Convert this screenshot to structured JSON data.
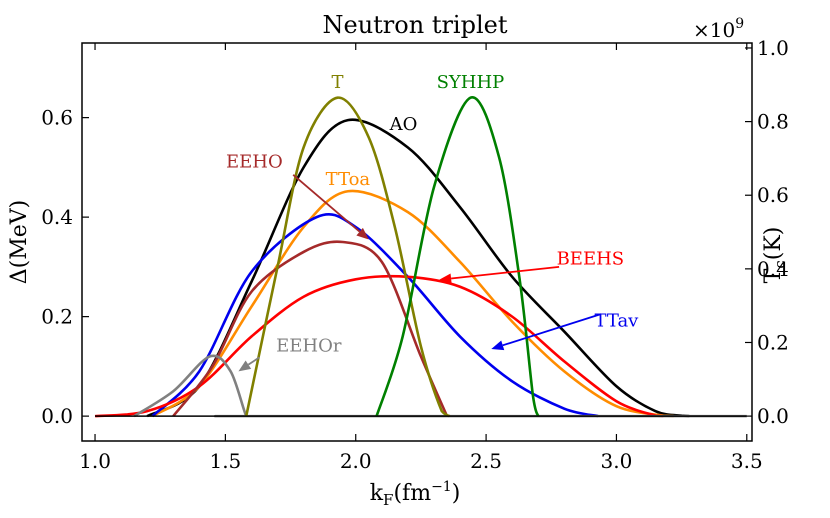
{
  "chart_data": {
    "type": "line",
    "title": "Neutron triplet",
    "xlabel": "k_F(fm^-1)",
    "xlabel_main": "k",
    "xlabel_sub": "F",
    "xlabel_paren": "(fm",
    "xlabel_sup": "−1",
    "xlabel_close": ")",
    "ylabel": "Δ(MeV)",
    "y2label": "T_c(K)",
    "y2label_main": "T",
    "y2label_sub": "c",
    "y2label_rest": "(K)",
    "y2_multiplier": "×10",
    "y2_multiplier_exp": "9",
    "xlim": [
      0.95,
      3.52
    ],
    "ylim": [
      -0.05,
      0.75
    ],
    "y2lim": [
      -0.0676,
      1.0135
    ],
    "xticks": [
      "1.0",
      "1.5",
      "2.0",
      "2.5",
      "3.0",
      "3.5"
    ],
    "yticks": [
      "0.0",
      "0.2",
      "0.4",
      "0.6"
    ],
    "y2ticks": [
      "0.0",
      "0.2",
      "0.4",
      "0.6",
      "0.8",
      "1.0"
    ],
    "series": [
      {
        "name": "AO",
        "color": "#000000",
        "x": [
          1.2,
          1.4,
          1.6,
          1.8,
          1.97,
          2.2,
          2.4,
          2.6,
          2.8,
          3.0,
          3.15,
          3.25,
          3.28
        ],
        "y": [
          0.0,
          0.06,
          0.27,
          0.5,
          0.595,
          0.54,
          0.42,
          0.28,
          0.17,
          0.06,
          0.01,
          0.001,
          0.0
        ]
      },
      {
        "name": "TToa",
        "color": "#ff8c00",
        "x": [
          1.22,
          1.4,
          1.6,
          1.8,
          1.97,
          2.2,
          2.4,
          2.6,
          2.8,
          3.0,
          3.18,
          3.22
        ],
        "y": [
          0.0,
          0.06,
          0.22,
          0.38,
          0.452,
          0.41,
          0.31,
          0.19,
          0.09,
          0.02,
          0.001,
          0.0
        ]
      },
      {
        "name": "TTav",
        "color": "#0000ee",
        "x": [
          1.22,
          1.4,
          1.6,
          1.85,
          2.0,
          2.2,
          2.4,
          2.6,
          2.8,
          2.93
        ],
        "y": [
          0.0,
          0.09,
          0.29,
          0.4,
          0.38,
          0.28,
          0.16,
          0.07,
          0.015,
          0.0
        ]
      },
      {
        "name": "BEEHS",
        "color": "#ff0000",
        "x": [
          1.0,
          1.2,
          1.4,
          1.6,
          1.8,
          2.0,
          2.2,
          2.4,
          2.6,
          2.8,
          3.0,
          3.15,
          3.18
        ],
        "y": [
          0.0,
          0.01,
          0.06,
          0.16,
          0.24,
          0.275,
          0.28,
          0.26,
          0.2,
          0.11,
          0.03,
          0.001,
          0.0
        ]
      },
      {
        "name": "EEHO",
        "color": "#a52a2a",
        "x": [
          1.3,
          1.45,
          1.6,
          1.8,
          1.95,
          2.1,
          2.25,
          2.35
        ],
        "y": [
          0.0,
          0.1,
          0.25,
          0.33,
          0.35,
          0.31,
          0.12,
          0.0
        ]
      },
      {
        "name": "EEHOr",
        "color": "#808080",
        "x": [
          1.15,
          1.3,
          1.44,
          1.52,
          1.58,
          1.6,
          3.5
        ],
        "y": [
          0.0,
          0.05,
          0.12,
          0.09,
          0.0,
          0.0,
          0.0
        ]
      },
      {
        "name": "T",
        "color": "#808000",
        "x": [
          1.58,
          1.7,
          1.8,
          1.93,
          2.05,
          2.15,
          2.25,
          2.33,
          2.36
        ],
        "y": [
          0.0,
          0.3,
          0.54,
          0.64,
          0.56,
          0.38,
          0.14,
          0.01,
          0.0
        ]
      },
      {
        "name": "SYHHP",
        "color": "#008000",
        "x": [
          2.08,
          2.18,
          2.3,
          2.44,
          2.55,
          2.63,
          2.68,
          2.7
        ],
        "y": [
          0.0,
          0.16,
          0.46,
          0.64,
          0.52,
          0.27,
          0.04,
          0.0
        ]
      },
      {
        "name": "baseline",
        "color": "#000000",
        "x": [
          1.0,
          3.5
        ],
        "y": [
          0.0,
          0.0
        ]
      }
    ],
    "annotations": [
      {
        "text": "T",
        "color": "#808000",
        "x": 1.93,
        "y": 0.66,
        "anchor": "middle"
      },
      {
        "text": "SYHHP",
        "color": "#008000",
        "x": 2.44,
        "y": 0.66,
        "anchor": "middle"
      },
      {
        "text": "AO",
        "color": "#000000",
        "x": 2.13,
        "y": 0.575,
        "anchor": "start"
      },
      {
        "text": "TToa",
        "color": "#ff8c00",
        "x": 1.97,
        "y": 0.465,
        "anchor": "middle"
      },
      {
        "text": "EEHO",
        "color": "#a52a2a",
        "x": 1.72,
        "y": 0.5,
        "anchor": "end"
      },
      {
        "text": "BEEHS",
        "color": "#ff0000",
        "x": 2.9,
        "y": 0.305,
        "anchor": "middle"
      },
      {
        "text": "TTav",
        "color": "#0000ee",
        "x": 3.0,
        "y": 0.18,
        "anchor": "middle"
      },
      {
        "text": "EEHOr",
        "color": "#808080",
        "x": 1.82,
        "y": 0.13,
        "anchor": "middle"
      }
    ],
    "arrows": [
      {
        "name": "eeho-arrow",
        "color": "#a52a2a",
        "from": [
          1.76,
          0.485
        ],
        "to": [
          2.05,
          0.355
        ]
      },
      {
        "name": "beehs-arrow",
        "color": "#ff0000",
        "from": [
          2.78,
          0.3
        ],
        "to": [
          2.32,
          0.274
        ]
      },
      {
        "name": "ttav-arrow",
        "color": "#0000ee",
        "from": [
          2.94,
          0.205
        ],
        "to": [
          2.52,
          0.135
        ]
      },
      {
        "name": "eehor-arrow",
        "color": "#808080",
        "from": [
          1.63,
          0.118
        ],
        "to": [
          1.55,
          0.09
        ]
      }
    ]
  }
}
